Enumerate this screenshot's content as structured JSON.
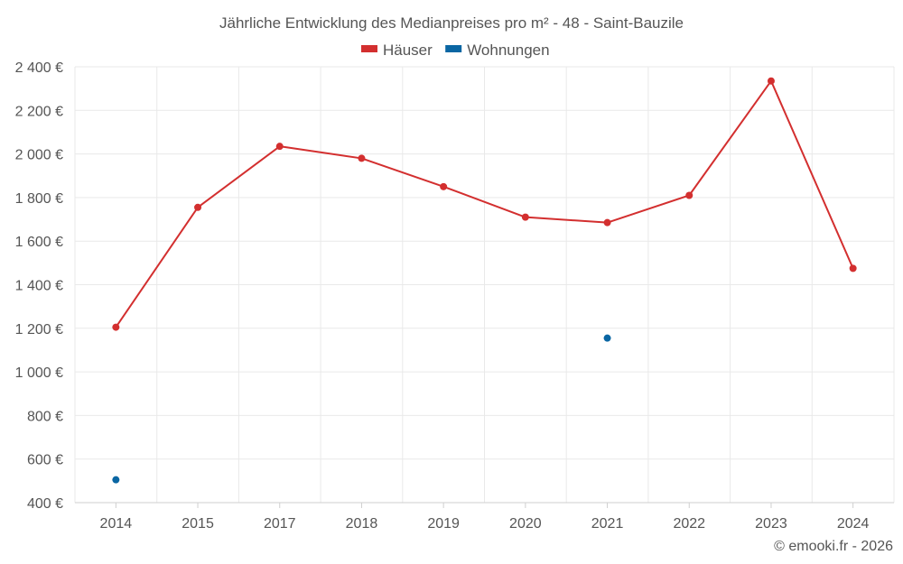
{
  "chart_data": {
    "type": "line",
    "title": "Jährliche Entwicklung des Medianpreises pro m² - 48 - Saint-Bauzile",
    "categories": [
      "2014",
      "2015",
      "2017",
      "2018",
      "2019",
      "2020",
      "2021",
      "2022",
      "2023",
      "2024"
    ],
    "series": [
      {
        "name": "Häuser",
        "color": "#d32f2f",
        "values": [
          1205,
          1755,
          2035,
          1980,
          1850,
          1710,
          1685,
          1810,
          2335,
          1475
        ]
      },
      {
        "name": "Wohnungen",
        "color": "#0a66a3",
        "values": [
          505,
          null,
          null,
          null,
          null,
          null,
          1155,
          null,
          null,
          null
        ]
      }
    ],
    "ylim": [
      400,
      2400
    ],
    "yticks": [
      400,
      600,
      800,
      1000,
      1200,
      1400,
      1600,
      1800,
      2000,
      2200,
      2400
    ],
    "ytick_labels": [
      "400 €",
      "600 €",
      "800 €",
      "1 000 €",
      "1 200 €",
      "1 400 €",
      "1 600 €",
      "1 800 €",
      "2 000 €",
      "2 200 €",
      "2 400 €"
    ],
    "xlabel": "",
    "ylabel": "",
    "grid": true,
    "legend_position": "top-center"
  },
  "credit": "© emooki.fr - 2026"
}
